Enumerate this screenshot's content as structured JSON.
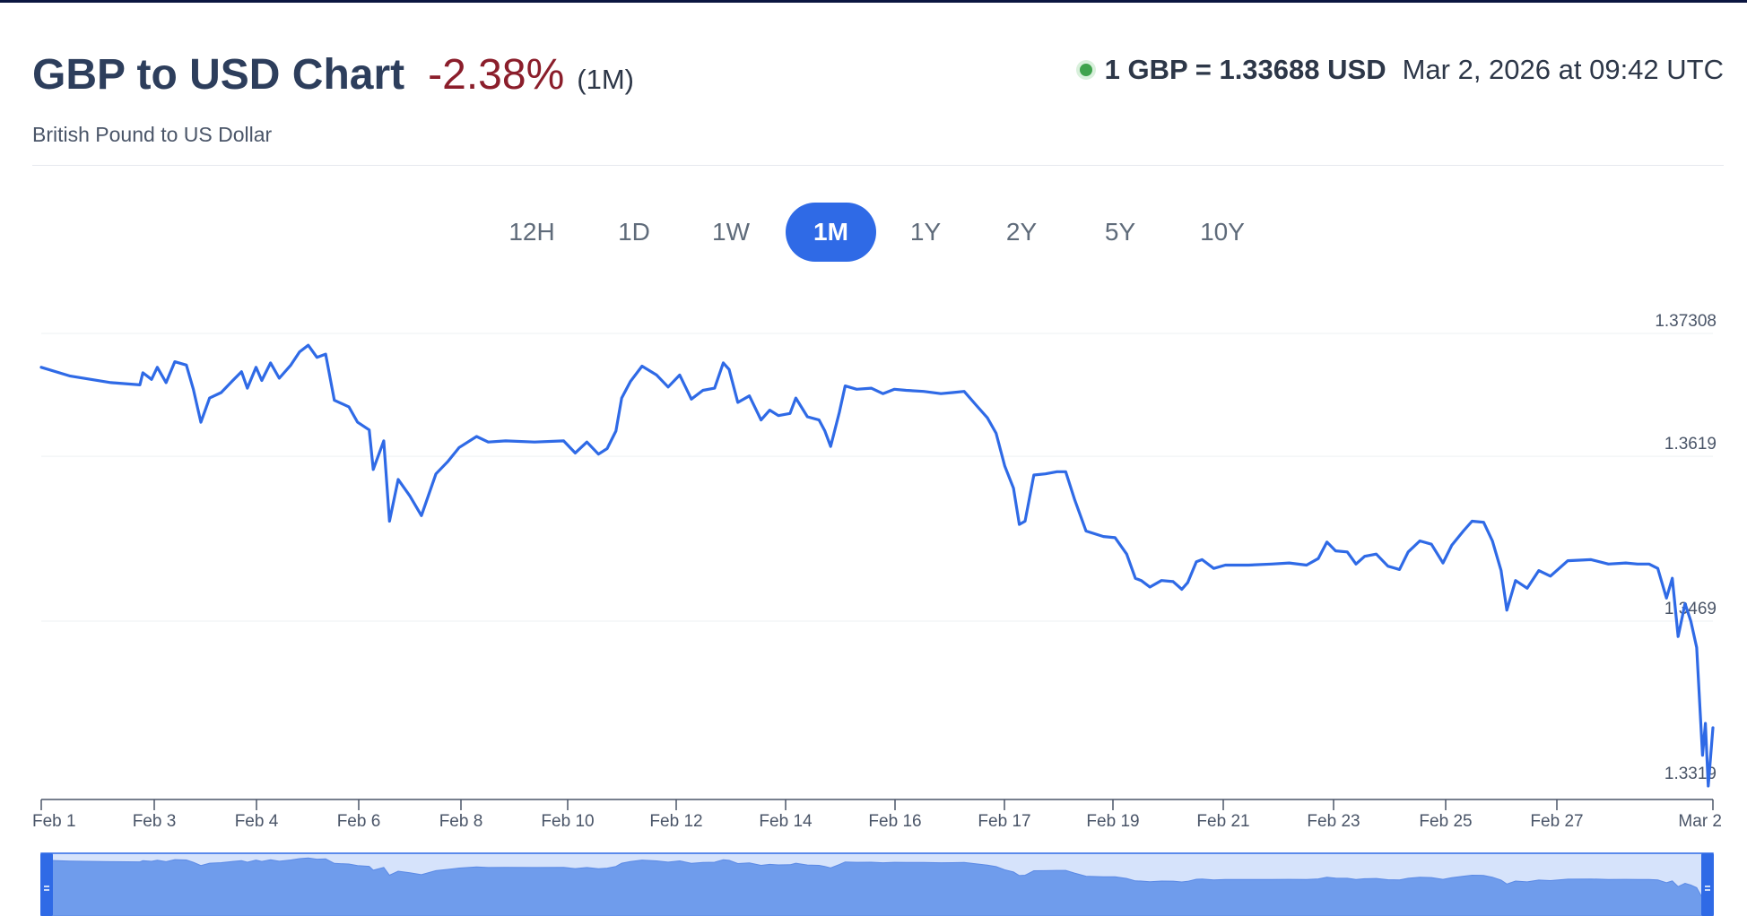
{
  "header": {
    "title": "GBP to USD Chart",
    "change": "-2.38%",
    "period": "(1M)",
    "subtitle": "British Pound to US Dollar",
    "rate": "1 GBP = 1.33688 USD",
    "timestamp": "Mar 2, 2026 at 09:42 UTC"
  },
  "tabs": [
    {
      "label": "12H",
      "active": false
    },
    {
      "label": "1D",
      "active": false
    },
    {
      "label": "1W",
      "active": false
    },
    {
      "label": "1M",
      "active": true
    },
    {
      "label": "1Y",
      "active": false
    },
    {
      "label": "2Y",
      "active": false
    },
    {
      "label": "5Y",
      "active": false
    },
    {
      "label": "10Y",
      "active": false
    }
  ],
  "colors": {
    "line": "#2f6ae6",
    "accent": "#2f6ae6",
    "negative": "#8b1e2b",
    "live": "#3fa34d",
    "navigator_fill": "#6f9cec",
    "navigator_bg": "#d6e3fb"
  },
  "icons": {
    "live": "live-status-dot-icon",
    "handle": "drag-handle-icon"
  },
  "chart_data": {
    "type": "line",
    "title": "GBP to USD Chart",
    "series": [
      {
        "name": "",
        "values": []
      }
    ],
    "x_tick_labels": [
      "Feb 1",
      "Feb 3",
      "Feb 4",
      "Feb 6",
      "Feb 8",
      "Feb 10",
      "Feb 12",
      "Feb 14",
      "Feb 16",
      "Feb 17",
      "Feb 19",
      "Feb 21",
      "Feb 23",
      "Feb 25",
      "Feb 27",
      "Mar 2"
    ],
    "y_tick_labels": [
      "1.37308",
      "1.3619",
      "1.3469",
      "1.3319"
    ],
    "y_ticks": [
      1.37308,
      1.3619,
      1.3469,
      1.3319
    ],
    "ylim": [
      1.3319,
      1.37308
    ],
    "grid": true,
    "navigator": true,
    "points": [
      [
        0.0,
        1.37
      ],
      [
        0.5,
        1.3692
      ],
      [
        1.2,
        1.3686
      ],
      [
        1.7,
        1.3684
      ],
      [
        1.75,
        1.3695
      ],
      [
        1.9,
        1.3689
      ],
      [
        2.0,
        1.37
      ],
      [
        2.15,
        1.3686
      ],
      [
        2.3,
        1.3705
      ],
      [
        2.5,
        1.3702
      ],
      [
        2.62,
        1.368
      ],
      [
        2.75,
        1.365
      ],
      [
        2.9,
        1.3672
      ],
      [
        3.1,
        1.3677
      ],
      [
        3.3,
        1.3688
      ],
      [
        3.45,
        1.3696
      ],
      [
        3.55,
        1.3681
      ],
      [
        3.7,
        1.37
      ],
      [
        3.8,
        1.3688
      ],
      [
        3.95,
        1.3704
      ],
      [
        4.1,
        1.369
      ],
      [
        4.3,
        1.3702
      ],
      [
        4.45,
        1.3714
      ],
      [
        4.6,
        1.372
      ],
      [
        4.75,
        1.3709
      ],
      [
        4.9,
        1.3712
      ],
      [
        5.05,
        1.367
      ],
      [
        5.3,
        1.3664
      ],
      [
        5.45,
        1.365
      ],
      [
        5.65,
        1.3643
      ],
      [
        5.72,
        1.3607
      ],
      [
        5.9,
        1.3633
      ],
      [
        6.0,
        1.356
      ],
      [
        6.15,
        1.3598
      ],
      [
        6.35,
        1.3583
      ],
      [
        6.55,
        1.3565
      ],
      [
        6.8,
        1.3603
      ],
      [
        7.0,
        1.3614
      ],
      [
        7.2,
        1.3627
      ],
      [
        7.5,
        1.3637
      ],
      [
        7.7,
        1.3632
      ],
      [
        8.0,
        1.3633
      ],
      [
        8.5,
        1.3632
      ],
      [
        9.0,
        1.3633
      ],
      [
        9.2,
        1.3622
      ],
      [
        9.4,
        1.3632
      ],
      [
        9.6,
        1.3621
      ],
      [
        9.75,
        1.3626
      ],
      [
        9.9,
        1.3642
      ],
      [
        10.0,
        1.3672
      ],
      [
        10.15,
        1.3687
      ],
      [
        10.35,
        1.3701
      ],
      [
        10.6,
        1.3693
      ],
      [
        10.8,
        1.3682
      ],
      [
        11.0,
        1.3693
      ],
      [
        11.2,
        1.3671
      ],
      [
        11.4,
        1.3679
      ],
      [
        11.6,
        1.3681
      ],
      [
        11.75,
        1.3704
      ],
      [
        11.85,
        1.3698
      ],
      [
        12.0,
        1.3668
      ],
      [
        12.2,
        1.3674
      ],
      [
        12.4,
        1.3652
      ],
      [
        12.55,
        1.3661
      ],
      [
        12.7,
        1.3656
      ],
      [
        12.9,
        1.3658
      ],
      [
        13.0,
        1.3672
      ],
      [
        13.2,
        1.3655
      ],
      [
        13.4,
        1.3652
      ],
      [
        13.5,
        1.3642
      ],
      [
        13.6,
        1.3628
      ],
      [
        13.75,
        1.3659
      ],
      [
        13.85,
        1.3683
      ],
      [
        14.05,
        1.368
      ],
      [
        14.3,
        1.3681
      ],
      [
        14.5,
        1.3676
      ],
      [
        14.7,
        1.368
      ],
      [
        14.9,
        1.3679
      ],
      [
        15.2,
        1.3678
      ],
      [
        15.5,
        1.3676
      ],
      [
        15.7,
        1.3677
      ],
      [
        15.9,
        1.3678
      ],
      [
        16.1,
        1.3666
      ],
      [
        16.3,
        1.3654
      ],
      [
        16.45,
        1.364
      ],
      [
        16.6,
        1.361
      ],
      [
        16.75,
        1.359
      ],
      [
        16.85,
        1.3557
      ],
      [
        16.95,
        1.356
      ],
      [
        17.1,
        1.3602
      ],
      [
        17.3,
        1.3603
      ],
      [
        17.5,
        1.3605
      ],
      [
        17.65,
        1.3605
      ],
      [
        17.8,
        1.358
      ],
      [
        18.0,
        1.3551
      ],
      [
        18.3,
        1.3546
      ],
      [
        18.5,
        1.3545
      ],
      [
        18.7,
        1.353
      ],
      [
        18.85,
        1.3508
      ],
      [
        18.95,
        1.3506
      ],
      [
        19.1,
        1.35
      ],
      [
        19.3,
        1.3506
      ],
      [
        19.5,
        1.3505
      ],
      [
        19.65,
        1.3498
      ],
      [
        19.75,
        1.3504
      ],
      [
        19.9,
        1.3523
      ],
      [
        20.0,
        1.3525
      ],
      [
        20.2,
        1.3517
      ],
      [
        20.4,
        1.352
      ],
      [
        20.8,
        1.352
      ],
      [
        21.2,
        1.3521
      ],
      [
        21.5,
        1.3522
      ],
      [
        21.8,
        1.352
      ],
      [
        22.0,
        1.3526
      ],
      [
        22.15,
        1.3541
      ],
      [
        22.3,
        1.3533
      ],
      [
        22.5,
        1.3532
      ],
      [
        22.65,
        1.3521
      ],
      [
        22.8,
        1.3528
      ],
      [
        23.0,
        1.353
      ],
      [
        23.2,
        1.3519
      ],
      [
        23.4,
        1.3516
      ],
      [
        23.55,
        1.3532
      ],
      [
        23.75,
        1.3542
      ],
      [
        23.95,
        1.3539
      ],
      [
        24.15,
        1.3522
      ],
      [
        24.3,
        1.3538
      ],
      [
        24.5,
        1.3551
      ],
      [
        24.65,
        1.356
      ],
      [
        24.85,
        1.3559
      ],
      [
        25.0,
        1.3542
      ],
      [
        25.15,
        1.3515
      ],
      [
        25.25,
        1.3479
      ],
      [
        25.4,
        1.3506
      ],
      [
        25.6,
        1.3499
      ],
      [
        25.8,
        1.3515
      ],
      [
        26.0,
        1.351
      ],
      [
        26.3,
        1.3524
      ],
      [
        26.7,
        1.3525
      ],
      [
        27.0,
        1.3521
      ],
      [
        27.3,
        1.3522
      ],
      [
        27.5,
        1.3521
      ],
      [
        27.7,
        1.3521
      ],
      [
        27.85,
        1.3517
      ],
      [
        28.0,
        1.349
      ],
      [
        28.1,
        1.3508
      ],
      [
        28.2,
        1.3455
      ],
      [
        28.32,
        1.3485
      ],
      [
        28.42,
        1.3469
      ],
      [
        28.52,
        1.3445
      ],
      [
        28.62,
        1.3347
      ],
      [
        28.67,
        1.3376
      ],
      [
        28.72,
        1.3319
      ],
      [
        28.8,
        1.3372
      ]
    ]
  }
}
